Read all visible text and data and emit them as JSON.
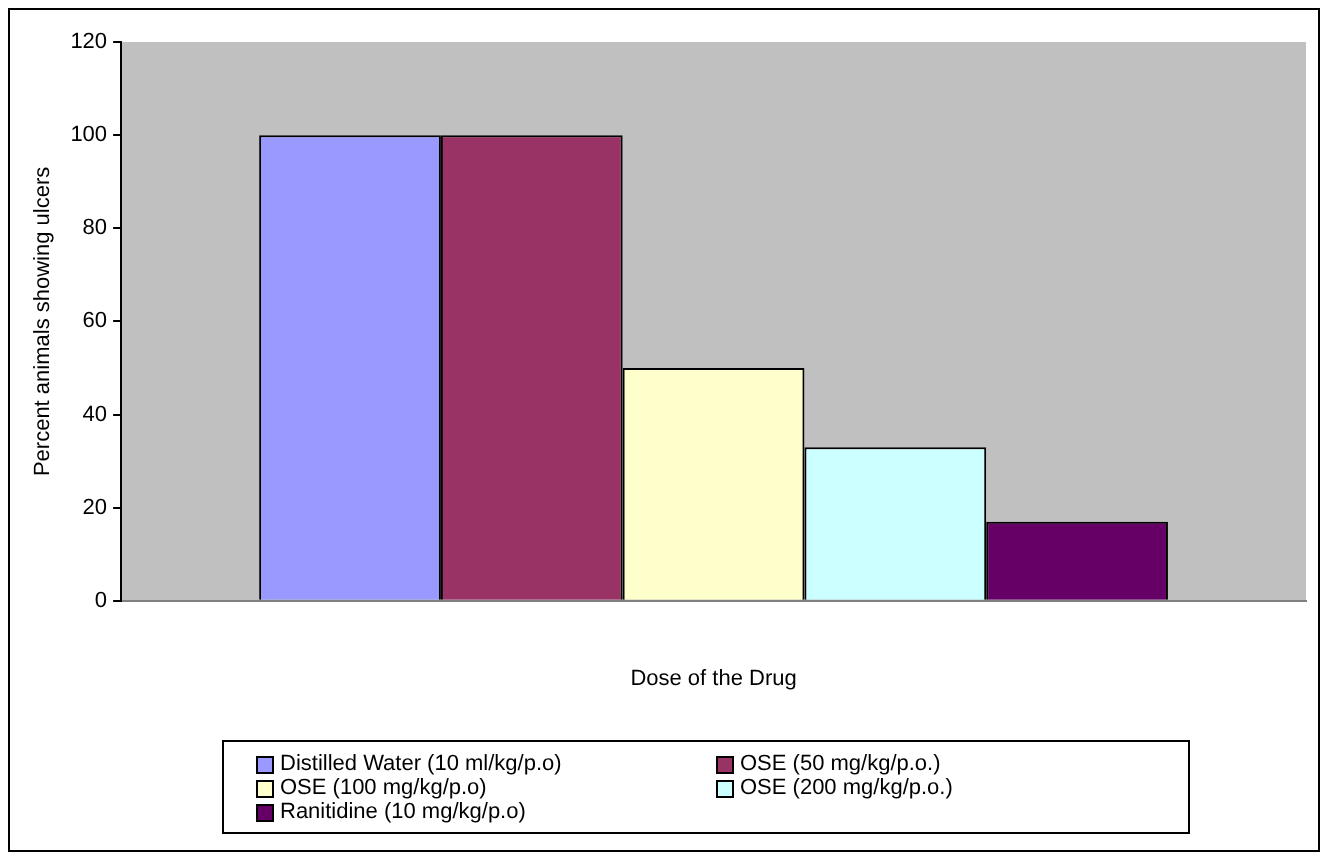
{
  "chart_data": {
    "type": "bar",
    "categories": [
      null
    ],
    "xlabel": "Dose of the Drug",
    "ylabel": "Percent animals showing ulcers",
    "series": [
      {
        "name": "Distilled Water (10 ml/kg/p.o)",
        "color": "#9999ff",
        "values": [
          100
        ]
      },
      {
        "name": "OSE (50 mg/kg/p.o.)",
        "color": "#993366",
        "values": [
          100
        ]
      },
      {
        "name": "OSE (100 mg/kg/p.o)",
        "color": "#ffffcc",
        "values": [
          50
        ]
      },
      {
        "name": "OSE (200 mg/kg/p.o.)",
        "color": "#ccffff",
        "values": [
          33
        ]
      },
      {
        "name": "Ranitidine (10 mg/kg/p.o)",
        "color": "#660066",
        "values": [
          17
        ]
      }
    ],
    "ylim": [
      0,
      120
    ],
    "yticks": [
      0,
      20,
      40,
      60,
      80,
      100,
      120
    ],
    "grid": false,
    "legend": "bottom"
  }
}
